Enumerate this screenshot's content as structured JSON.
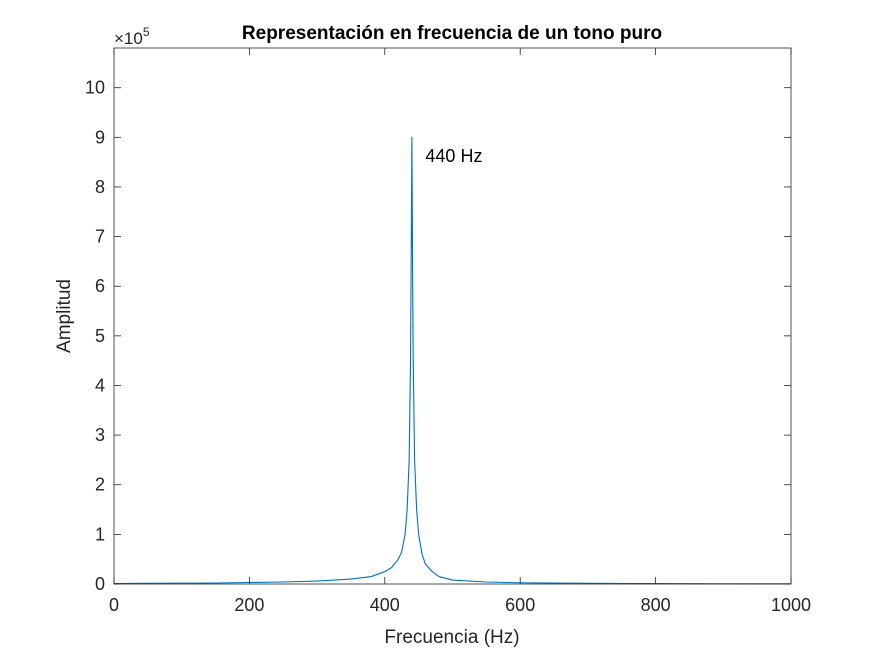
{
  "chart_data": {
    "type": "line",
    "title": "Representación en frecuencia de un tono puro",
    "xlabel": "Frecuencia (Hz)",
    "ylabel": "Amplitud",
    "xlim": [
      0,
      1000
    ],
    "ylim": [
      0,
      10.8
    ],
    "y_multiplier_label": "×10",
    "y_multiplier_exponent": "5",
    "xticks": [
      0,
      200,
      400,
      600,
      800,
      1000
    ],
    "yticks": [
      0,
      1,
      2,
      3,
      4,
      5,
      6,
      7,
      8,
      9,
      10
    ],
    "grid": false,
    "series": [
      {
        "color": "#0072BD",
        "x": [
          0,
          50,
          100,
          150,
          200,
          250,
          300,
          350,
          380,
          400,
          410,
          420,
          425,
          430,
          433,
          436,
          438,
          439,
          440,
          441,
          442,
          444,
          447,
          450,
          455,
          460,
          470,
          480,
          500,
          550,
          600,
          650,
          700,
          800,
          900,
          1000
        ],
        "y": [
          0.01,
          0.013,
          0.016,
          0.02,
          0.03,
          0.04,
          0.06,
          0.1,
          0.15,
          0.25,
          0.33,
          0.5,
          0.65,
          1.0,
          1.5,
          2.5,
          4.5,
          6.5,
          9.0,
          6.5,
          4.5,
          2.5,
          1.5,
          1.0,
          0.6,
          0.4,
          0.25,
          0.15,
          0.08,
          0.04,
          0.025,
          0.018,
          0.013,
          0.008,
          0.005,
          0.004
        ]
      }
    ],
    "annotations": [
      {
        "text": "440 Hz",
        "x": 460,
        "y": 8.5
      }
    ]
  }
}
